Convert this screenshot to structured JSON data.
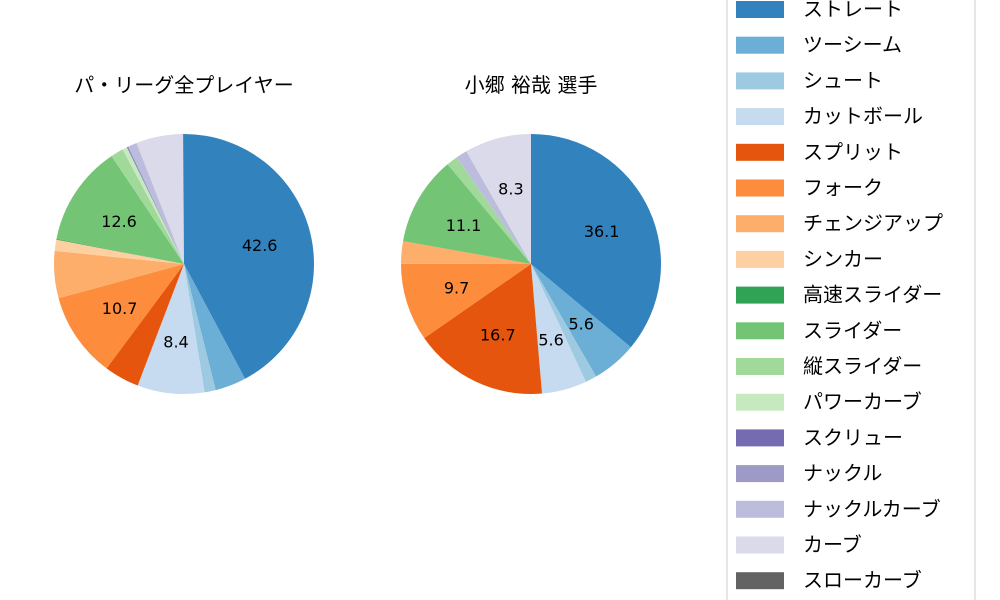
{
  "chart_data": [
    {
      "type": "pie",
      "title": "パ・リーグ全プレイヤー",
      "slices": [
        {
          "name": "ストレート",
          "value": 42.6,
          "label": "42.6"
        },
        {
          "name": "ツーシーム",
          "value": 3.9,
          "label": ""
        },
        {
          "name": "シュート",
          "value": 1.4,
          "label": ""
        },
        {
          "name": "カットボール",
          "value": 8.4,
          "label": "8.4"
        },
        {
          "name": "スプリット",
          "value": 4.4,
          "label": ""
        },
        {
          "name": "フォーク",
          "value": 10.7,
          "label": "10.7"
        },
        {
          "name": "チェンジアップ",
          "value": 5.9,
          "label": ""
        },
        {
          "name": "シンカー",
          "value": 1.4,
          "label": ""
        },
        {
          "name": "高速スライダー",
          "value": 0.1,
          "label": ""
        },
        {
          "name": "スライダー",
          "value": 12.6,
          "label": "12.6"
        },
        {
          "name": "縦スライダー",
          "value": 1.6,
          "label": ""
        },
        {
          "name": "パワーカーブ",
          "value": 0.6,
          "label": ""
        },
        {
          "name": "スクリュー",
          "value": 0.1,
          "label": ""
        },
        {
          "name": "ナックル",
          "value": 0.1,
          "label": ""
        },
        {
          "name": "ナックルカーブ",
          "value": 1.1,
          "label": ""
        },
        {
          "name": "カーブ",
          "value": 5.9,
          "label": ""
        },
        {
          "name": "スローカーブ",
          "value": 0.1,
          "label": ""
        }
      ]
    },
    {
      "type": "pie",
      "title": "小郷 裕哉  選手",
      "slices": [
        {
          "name": "ストレート",
          "value": 36.1,
          "label": "36.1"
        },
        {
          "name": "ツーシーム",
          "value": 5.6,
          "label": "5.6"
        },
        {
          "name": "シュート",
          "value": 1.4,
          "label": ""
        },
        {
          "name": "カットボール",
          "value": 5.6,
          "label": "5.6"
        },
        {
          "name": "スプリット",
          "value": 16.7,
          "label": "16.7"
        },
        {
          "name": "フォーク",
          "value": 9.7,
          "label": "9.7"
        },
        {
          "name": "チェンジアップ",
          "value": 2.8,
          "label": ""
        },
        {
          "name": "シンカー",
          "value": 0,
          "label": ""
        },
        {
          "name": "高速スライダー",
          "value": 0,
          "label": ""
        },
        {
          "name": "スライダー",
          "value": 11.1,
          "label": "11.1"
        },
        {
          "name": "縦スライダー",
          "value": 1.4,
          "label": ""
        },
        {
          "name": "パワーカーブ",
          "value": 0,
          "label": ""
        },
        {
          "name": "スクリュー",
          "value": 0,
          "label": ""
        },
        {
          "name": "ナックル",
          "value": 0,
          "label": ""
        },
        {
          "name": "ナックルカーブ",
          "value": 1.4,
          "label": ""
        },
        {
          "name": "カーブ",
          "value": 8.3,
          "label": "8.3"
        },
        {
          "name": "スローカーブ",
          "value": 0,
          "label": ""
        }
      ]
    }
  ],
  "legend": {
    "placement": "right",
    "items": [
      {
        "name": "ストレート",
        "color": "#3182bd"
      },
      {
        "name": "ツーシーム",
        "color": "#6baed6"
      },
      {
        "name": "シュート",
        "color": "#9ecae1"
      },
      {
        "name": "カットボール",
        "color": "#c6dbef"
      },
      {
        "name": "スプリット",
        "color": "#e6550d"
      },
      {
        "name": "フォーク",
        "color": "#fd8d3c"
      },
      {
        "name": "チェンジアップ",
        "color": "#fdae6b"
      },
      {
        "name": "シンカー",
        "color": "#fdd0a2"
      },
      {
        "name": "高速スライダー",
        "color": "#31a354"
      },
      {
        "name": "スライダー",
        "color": "#74c476"
      },
      {
        "name": "縦スライダー",
        "color": "#a1d99b"
      },
      {
        "name": "パワーカーブ",
        "color": "#c7e9c0"
      },
      {
        "name": "スクリュー",
        "color": "#756bb1"
      },
      {
        "name": "ナックル",
        "color": "#9e9ac8"
      },
      {
        "name": "ナックルカーブ",
        "color": "#bcbddc"
      },
      {
        "name": "カーブ",
        "color": "#dadaeb"
      },
      {
        "name": "スローカーブ",
        "color": "#636363"
      }
    ]
  }
}
